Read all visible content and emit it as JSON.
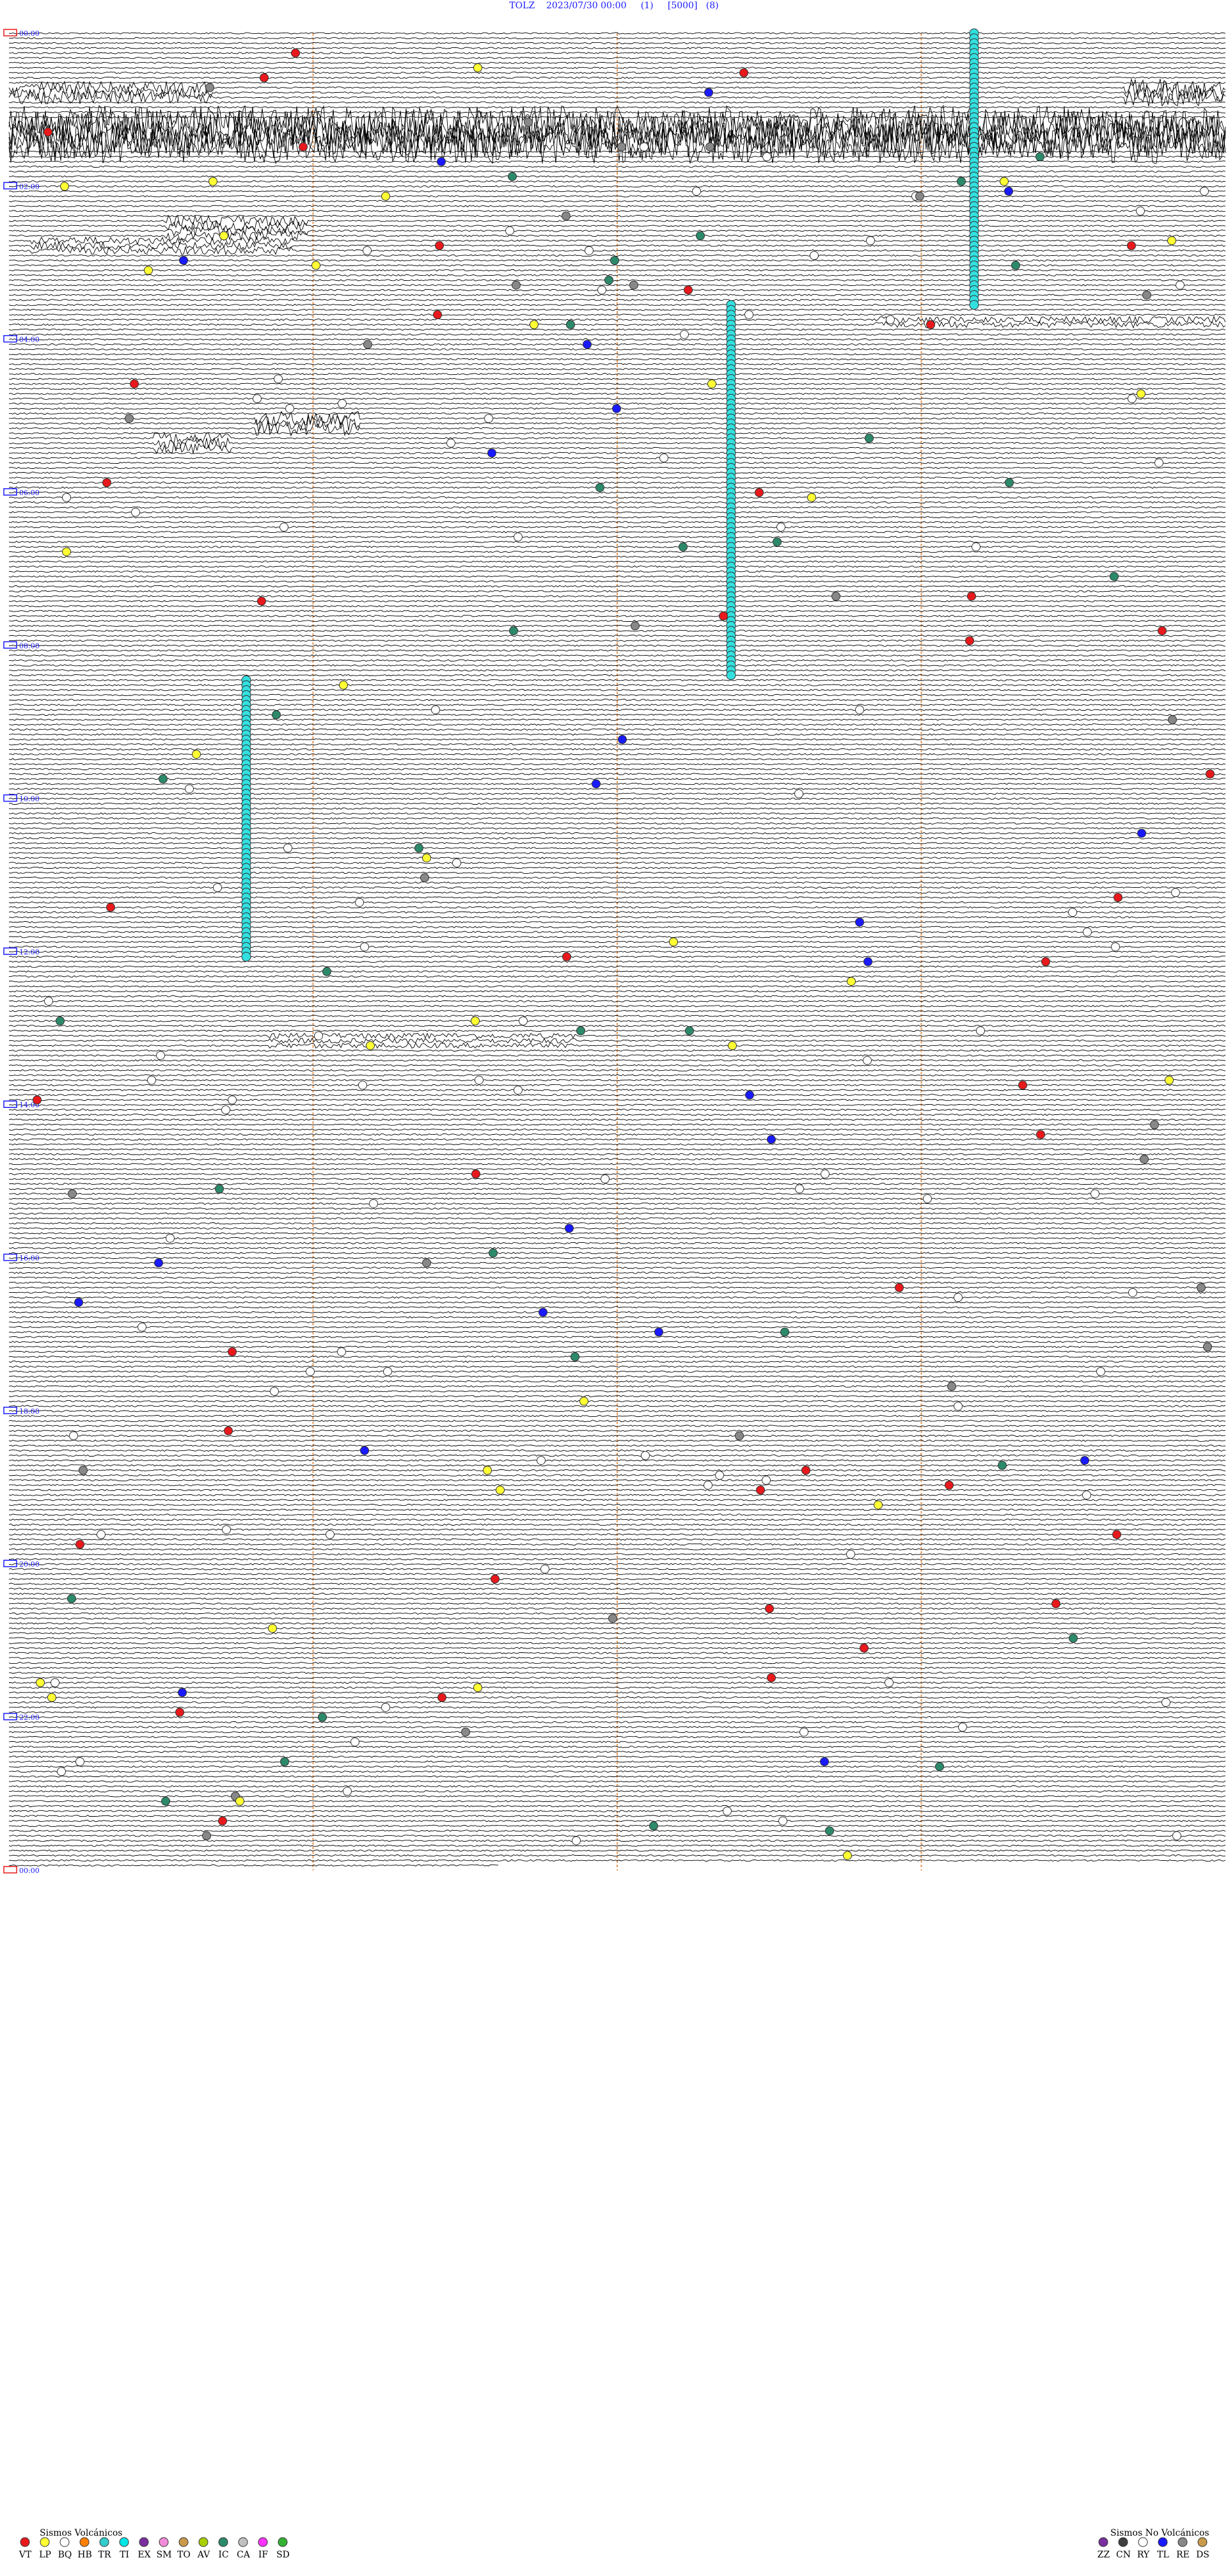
{
  "header": {
    "station": "TOLZ",
    "datetime": "2023/07/30 00:00",
    "channel": "(1)",
    "scale": "[5000]",
    "filter": "(8)"
  },
  "time_labels": [
    "00:00",
    "02:00",
    "04:00",
    "06:00",
    "08:00",
    "10:00",
    "12:00",
    "14:00",
    "16:00",
    "18:00",
    "20:00",
    "22:00",
    "00:00"
  ],
  "minute_ticks": [
    "15",
    "30",
    "45"
  ],
  "legend": {
    "volcanic": {
      "title": "Sismos Volcánicos",
      "codes": [
        "VT",
        "LP",
        "BQ",
        "HB",
        "TR",
        "TI",
        "EX",
        "SM",
        "TO",
        "AV",
        "IC",
        "CA",
        "IF",
        "SD"
      ],
      "colors": [
        "#e8191c",
        "#ffff33",
        "#ffffff",
        "#ff7f00",
        "#33cccc",
        "#00e5e5",
        "#7a2f9e",
        "#f28cd9",
        "#c89a4a",
        "#a8d000",
        "#2c8a6a",
        "#c0c0c0",
        "#ff33ff",
        "#33b233"
      ]
    },
    "non_volcanic": {
      "title": "Sismos No Volcánicos",
      "codes": [
        "ZZ",
        "CN",
        "RY",
        "TL",
        "RE",
        "DS"
      ],
      "colors": [
        "#7a2f9e",
        "#404040",
        "#ffffff",
        "#1a1aff",
        "#888888",
        "#c89a4a"
      ]
    }
  },
  "colors": {
    "trace": "#000000",
    "time_label": "#1a1aff",
    "minute_gridline": "#e69a5a",
    "tremor_marker": "#33e0e0"
  }
}
